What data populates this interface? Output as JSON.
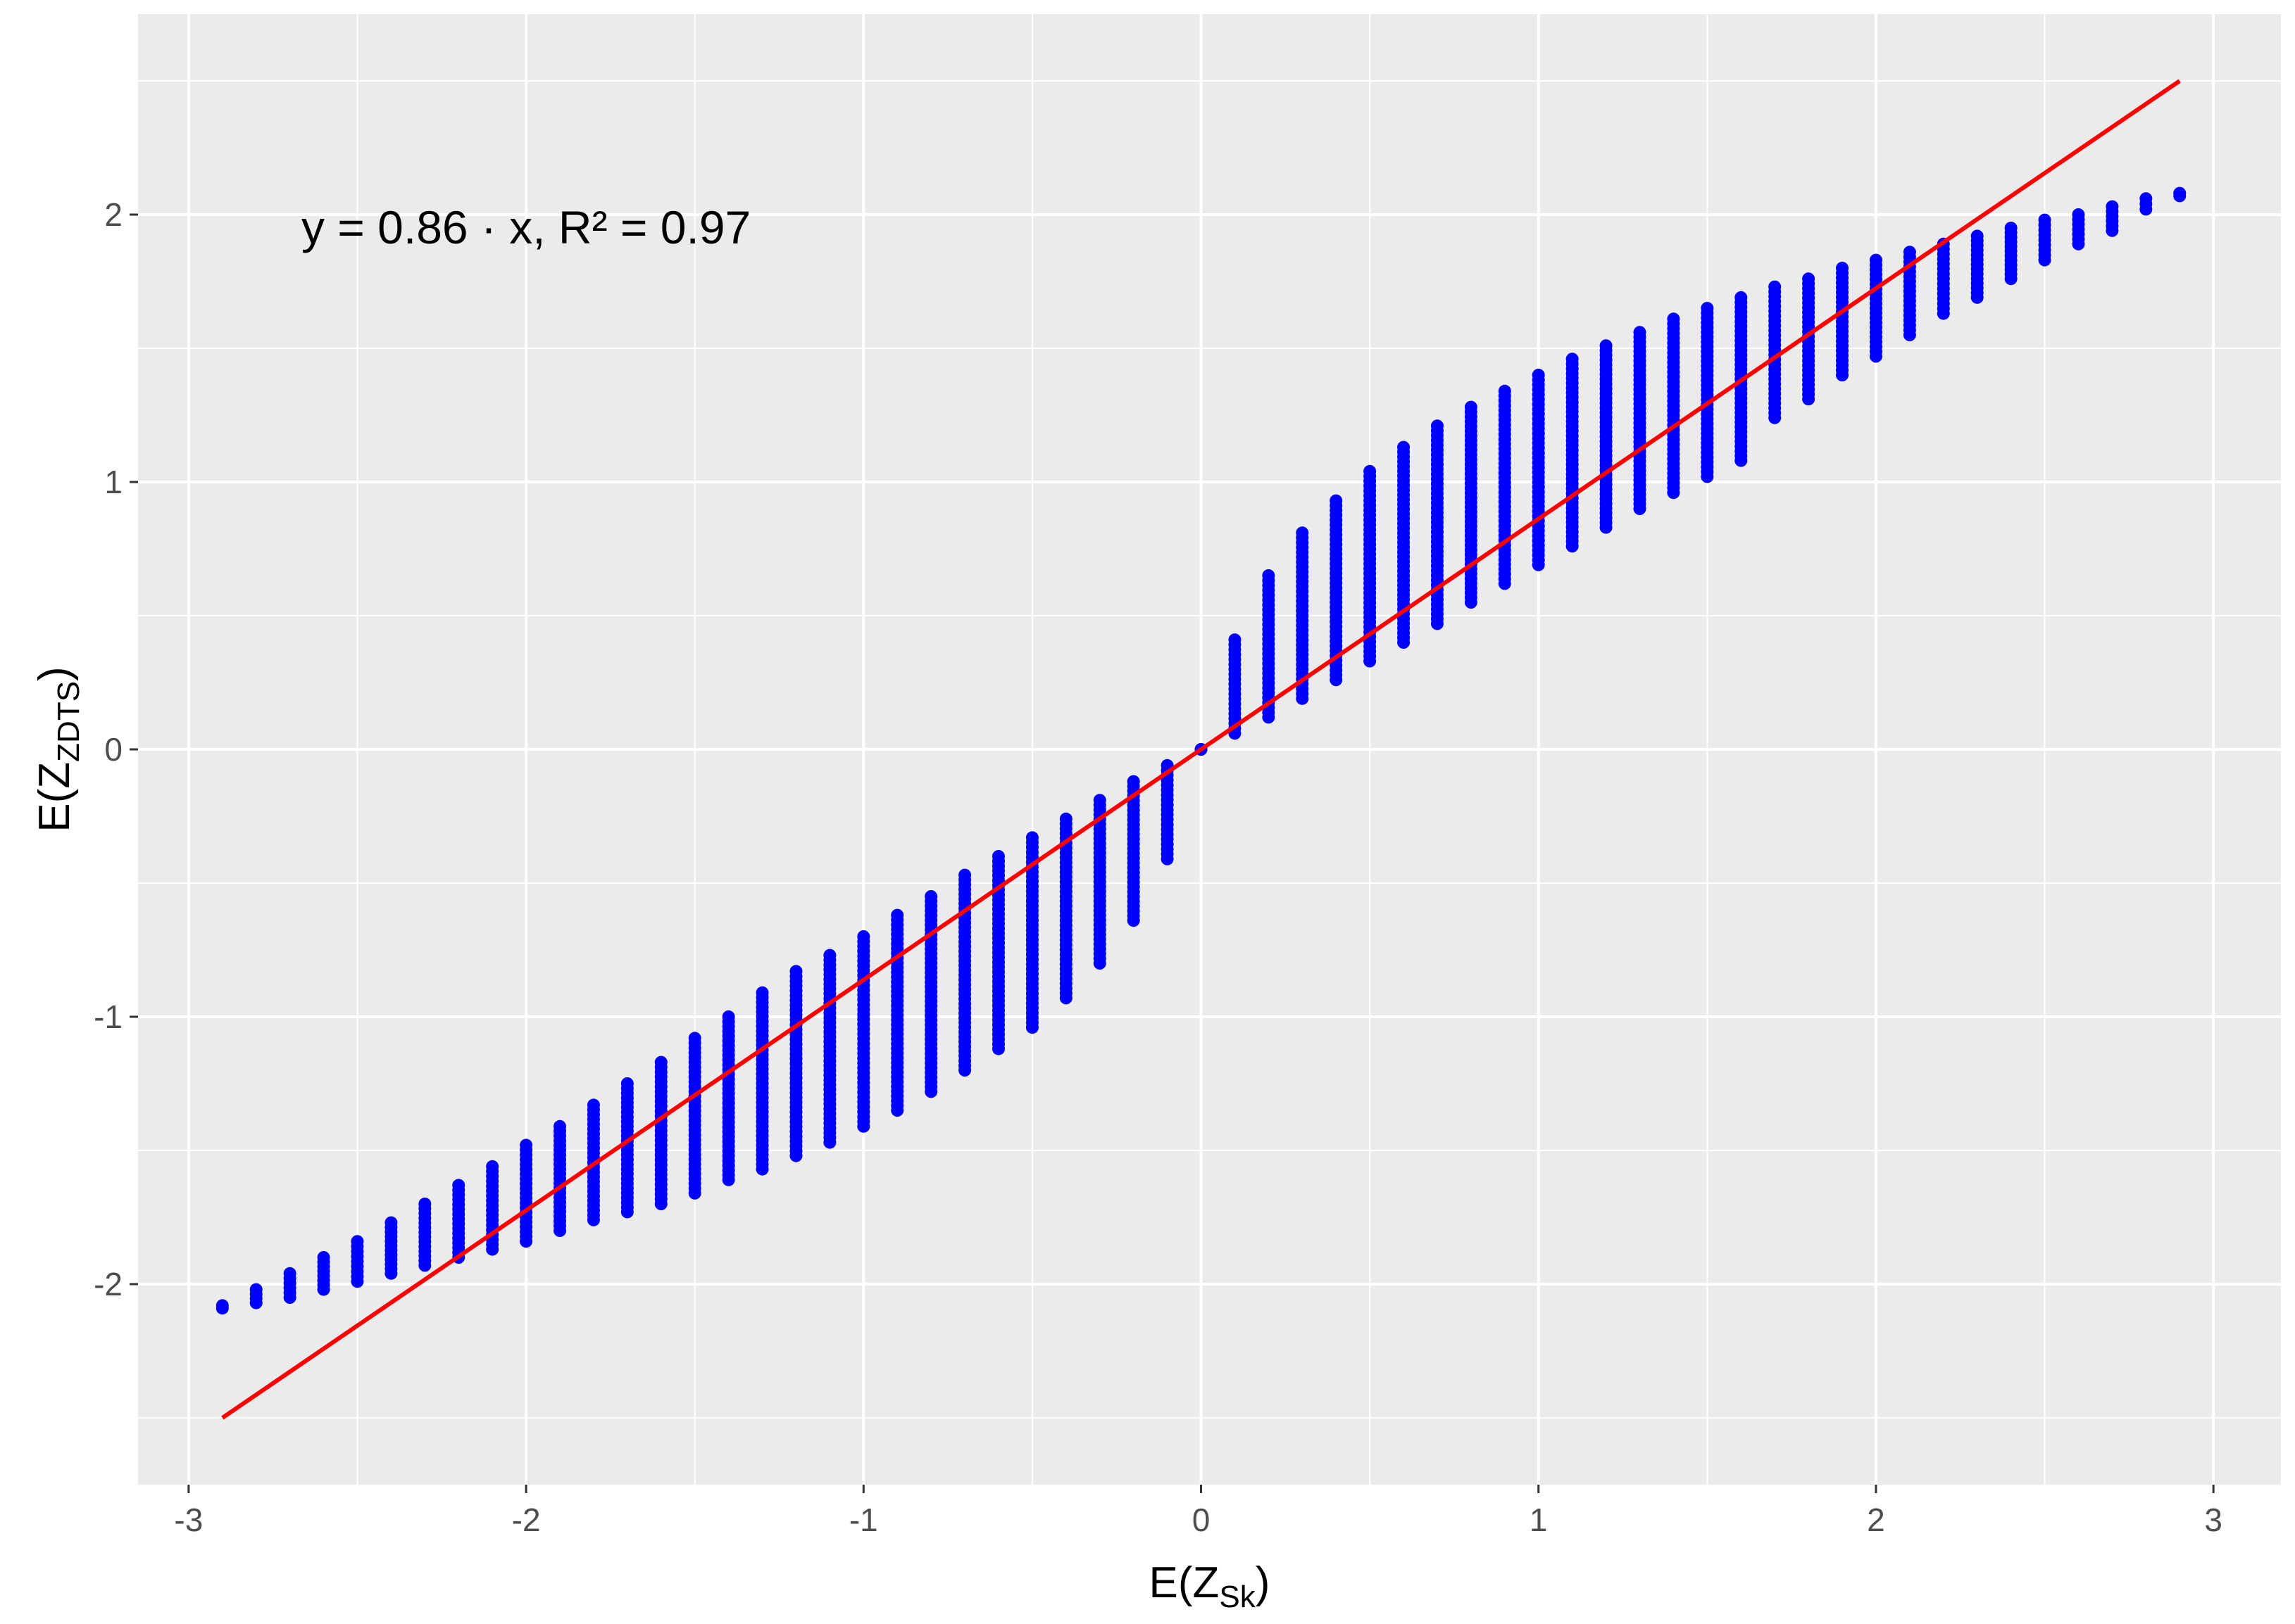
{
  "chart_data": {
    "type": "scatter",
    "title": "",
    "annotation": {
      "text": "y = 0.86 · x,  R² = 0.97",
      "x": -2.0,
      "y": 1.95
    },
    "xlabel": {
      "base": "E(Z",
      "sub": "Sk",
      "close": ")"
    },
    "ylabel": {
      "base": "E(Z",
      "sub": "ZDTS",
      "close": ")"
    },
    "xlim": [
      -3.15,
      3.2
    ],
    "ylim": [
      -2.75,
      2.75
    ],
    "x_ticks": [
      -3,
      -2,
      -1,
      0,
      1,
      2,
      3
    ],
    "x_tick_labels": [
      "-3",
      "-2",
      "-1",
      "0",
      "1",
      "2",
      "3"
    ],
    "y_ticks": [
      -2,
      -1,
      0,
      1,
      2
    ],
    "y_tick_labels": [
      "-2",
      "-1",
      "0",
      "1",
      "2"
    ],
    "grid": true,
    "legend": "none",
    "colors": {
      "panel": "#ebebeb",
      "grid": "#ffffff",
      "points": "#0000ff",
      "fit_line": "#ff0000"
    },
    "fit_line": {
      "x": [
        -2.9,
        2.9
      ],
      "y": [
        -2.5,
        2.5
      ]
    },
    "series": [
      {
        "x_values": [
          -2.9,
          -2.8,
          -2.7,
          -2.6,
          -2.5,
          -2.4,
          -2.3,
          -2.2,
          -2.1,
          -2.0,
          -1.9,
          -1.8,
          -1.7,
          -1.6,
          -1.5,
          -1.4,
          -1.3,
          -1.2,
          -1.1,
          -1.0,
          -0.9,
          -0.8,
          -0.7,
          -0.6,
          -0.5,
          -0.4,
          -0.3,
          -0.2,
          -0.1,
          0.0,
          0.1,
          0.2,
          0.3,
          0.4,
          0.5,
          0.6,
          0.7,
          0.8,
          0.9,
          1.0,
          1.1,
          1.2,
          1.3,
          1.4,
          1.5,
          1.6,
          1.7,
          1.8,
          1.9,
          2.0,
          2.1,
          2.2,
          2.3,
          2.4,
          2.5,
          2.6,
          2.7,
          2.8,
          2.9
        ],
        "y_min": [
          -2.09,
          -2.07,
          -2.05,
          -2.02,
          -1.99,
          -1.96,
          -1.93,
          -1.9,
          -1.87,
          -1.84,
          -1.8,
          -1.76,
          -1.73,
          -1.7,
          -1.66,
          -1.61,
          -1.57,
          -1.52,
          -1.47,
          -1.41,
          -1.35,
          -1.28,
          -1.2,
          -1.12,
          -1.04,
          -0.93,
          -0.8,
          -0.64,
          -0.41,
          0.0,
          0.06,
          0.12,
          0.19,
          0.26,
          0.33,
          0.4,
          0.47,
          0.55,
          0.62,
          0.69,
          0.76,
          0.83,
          0.9,
          0.96,
          1.02,
          1.08,
          1.24,
          1.31,
          1.4,
          1.47,
          1.55,
          1.63,
          1.69,
          1.76,
          1.83,
          1.89,
          1.94,
          2.02,
          2.07
        ],
        "y_max": [
          -2.08,
          -2.02,
          -1.96,
          -1.9,
          -1.84,
          -1.77,
          -1.7,
          -1.63,
          -1.56,
          -1.48,
          -1.41,
          -1.33,
          -1.25,
          -1.17,
          -1.08,
          -1.0,
          -0.91,
          -0.83,
          -0.77,
          -0.7,
          -0.62,
          -0.55,
          -0.47,
          -0.4,
          -0.33,
          -0.26,
          -0.19,
          -0.12,
          -0.06,
          0.0,
          0.41,
          0.65,
          0.81,
          0.93,
          1.04,
          1.13,
          1.21,
          1.28,
          1.34,
          1.4,
          1.46,
          1.51,
          1.56,
          1.61,
          1.65,
          1.69,
          1.73,
          1.76,
          1.8,
          1.83,
          1.86,
          1.89,
          1.92,
          1.95,
          1.98,
          2.0,
          2.03,
          2.06,
          2.08
        ]
      }
    ]
  }
}
